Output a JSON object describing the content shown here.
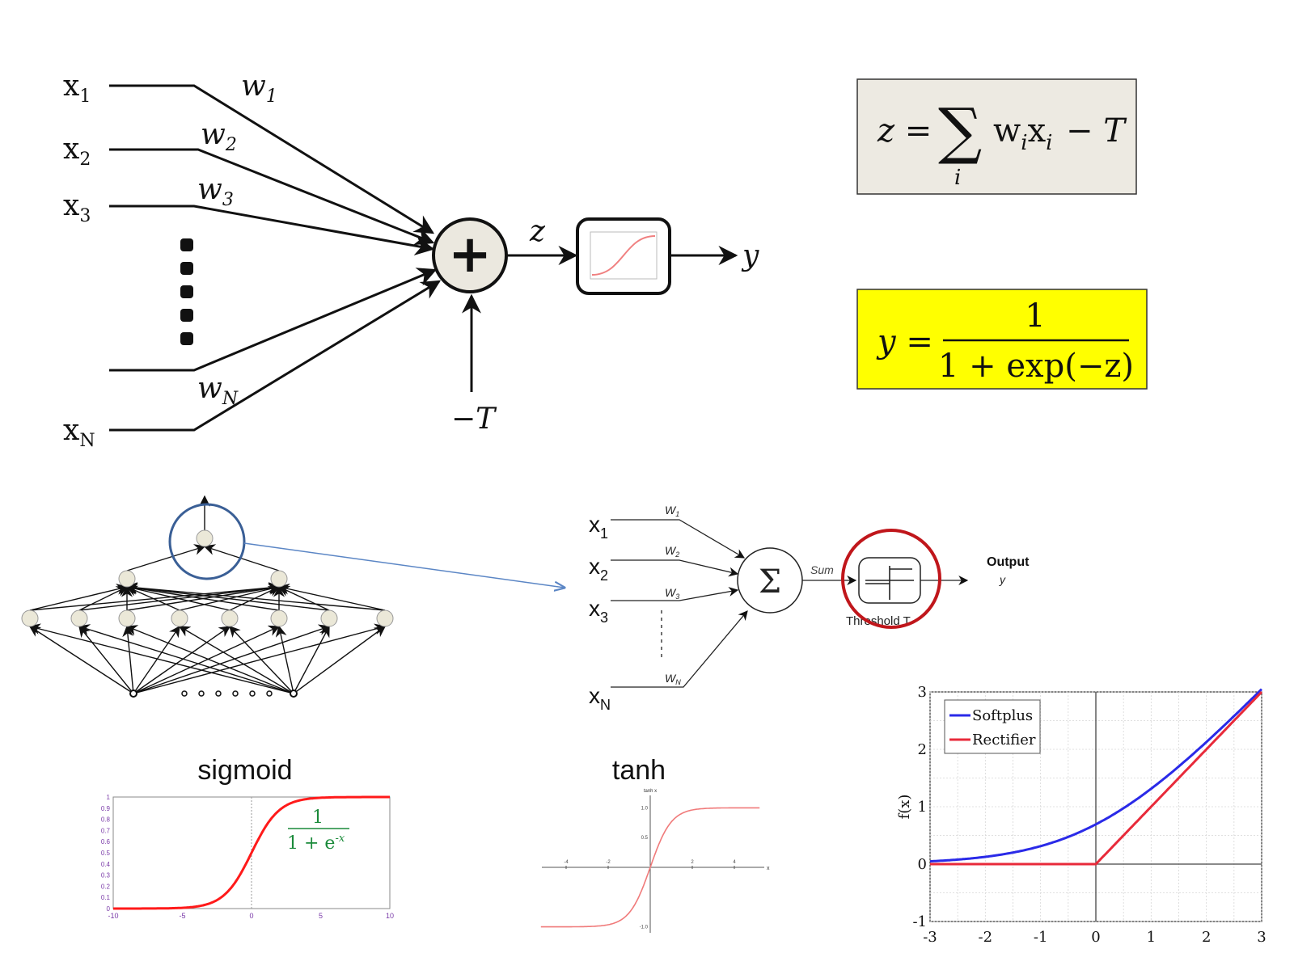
{
  "perceptron": {
    "inputs": [
      {
        "name": "x",
        "sub": "1",
        "weight": "w",
        "weight_sub": "1"
      },
      {
        "name": "x",
        "sub": "2",
        "weight": "w",
        "weight_sub": "2"
      },
      {
        "name": "x",
        "sub": "3",
        "weight": "w",
        "weight_sub": "3"
      },
      {
        "name": "x",
        "sub": "N",
        "weight": "w",
        "weight_sub": "N"
      }
    ],
    "sum_symbol": "+",
    "z_label": "z",
    "y_label": "y",
    "bias_label": "−T"
  },
  "formulas": {
    "z_lhs": "z =",
    "z_sum": "∑",
    "z_index": "i",
    "z_term": "w",
    "z_term_sub": "i",
    "z_term2": "x",
    "z_term2_sub": "i",
    "z_tail": "− T",
    "y_lhs": "y =",
    "y_num": "1",
    "y_den": "1 + exp(−z)"
  },
  "neuron2": {
    "inputs": [
      {
        "name": "x",
        "sub": "1",
        "weight": "W",
        "weight_sub": "1"
      },
      {
        "name": "x",
        "sub": "2",
        "weight": "W",
        "weight_sub": "2"
      },
      {
        "name": "x",
        "sub": "3",
        "weight": "W",
        "weight_sub": "3"
      },
      {
        "name": "x",
        "sub": "N",
        "weight": "W",
        "weight_sub": "N"
      }
    ],
    "sigma": "Σ",
    "sum_label": "Sum",
    "threshold_label": "Threshold T",
    "output_label": "Output",
    "output_y": "y"
  },
  "sigmoid": {
    "title": "sigmoid",
    "formula_num": "1",
    "formula_den": "1 + e",
    "formula_exp": "-x",
    "x_ticks": [
      "-10",
      "-5",
      "0",
      "5",
      "10"
    ],
    "y_ticks": [
      "0",
      "0.1",
      "0.2",
      "0.3",
      "0.4",
      "0.5",
      "0.6",
      "0.7",
      "0.8",
      "0.9",
      "1"
    ]
  },
  "tanh": {
    "title": "tanh",
    "chart_title": "tanh x",
    "x_axis_label": "x",
    "x_ticks": [
      "-4",
      "-2",
      "2",
      "4"
    ],
    "y_ticks": [
      "1.0",
      "0.5",
      "-1.0"
    ]
  },
  "relu": {
    "legend": [
      {
        "name": "Softplus",
        "color": "#2a2ae8"
      },
      {
        "name": "Rectifier",
        "color": "#e82a3a"
      }
    ],
    "ylabel": "f(x)",
    "x_ticks": [
      "-3",
      "-2",
      "-1",
      "0",
      "1",
      "2",
      "3"
    ],
    "y_ticks": [
      "-1",
      "0",
      "1",
      "2",
      "3"
    ]
  },
  "chart_data": [
    {
      "type": "line",
      "title": "sigmoid",
      "x_range": [
        -10,
        10
      ],
      "ylim": [
        0,
        1
      ],
      "series": [
        {
          "values_fn": "1/(1+exp(-x))",
          "color": "#ff1a1a"
        }
      ]
    },
    {
      "type": "line",
      "title": "tanh",
      "x_range": [
        -5,
        5
      ],
      "ylim": [
        -1,
        1
      ],
      "series": [
        {
          "values_fn": "tanh(x)",
          "color": "#f07a7a"
        }
      ]
    },
    {
      "type": "line",
      "x_range": [
        -3,
        3
      ],
      "ylim": [
        -1,
        3
      ],
      "ylabel": "f(x)",
      "grid": true,
      "legend_position": "top-left",
      "series": [
        {
          "name": "Softplus",
          "values_fn": "log(1+exp(x))",
          "color": "#2a2ae8"
        },
        {
          "name": "Rectifier",
          "values_fn": "max(0,x)",
          "color": "#e82a3a"
        }
      ]
    }
  ]
}
